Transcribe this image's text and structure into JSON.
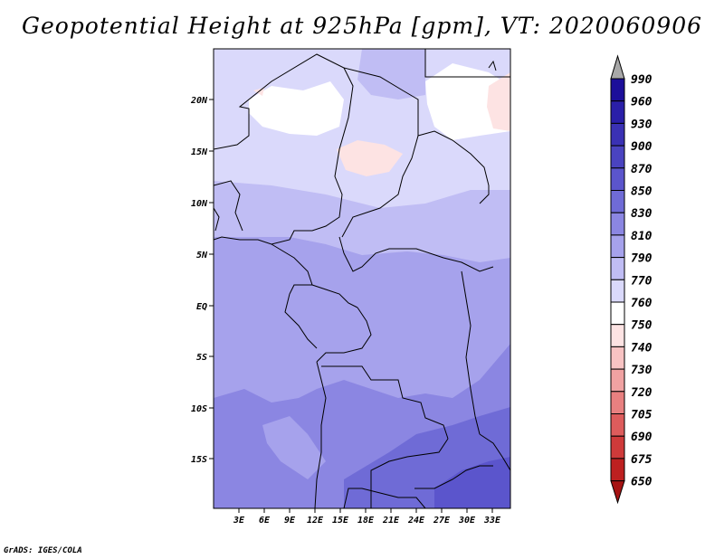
{
  "title": "Geopotential Height at 925hPa [gpm], VT: 2020060906",
  "credit": "GrADS: IGES/COLA",
  "lat_labels": [
    "20N",
    "15N",
    "10N",
    "5N",
    "EQ",
    "5S",
    "10S",
    "15S"
  ],
  "lon_labels": [
    "3E",
    "6E",
    "9E",
    "12E",
    "15E",
    "18E",
    "21E",
    "24E",
    "27E",
    "30E",
    "33E"
  ],
  "colorbar": {
    "levels": [
      "990",
      "960",
      "930",
      "900",
      "870",
      "850",
      "830",
      "810",
      "790",
      "770",
      "760",
      "750",
      "740",
      "730",
      "720",
      "705",
      "690",
      "675",
      "650"
    ],
    "colors": [
      "#1c0f9a",
      "#2a1fa8",
      "#3a31b4",
      "#4a43c0",
      "#5b55cc",
      "#6f6bd6",
      "#8b86e2",
      "#a6a2ec",
      "#c0bdf4",
      "#dad9fb",
      "#ffffff",
      "#fde3e3",
      "#f8c3c3",
      "#f0a2a2",
      "#e88080",
      "#dd5c5c",
      "#cf3a3a",
      "#bd2020",
      "#a61313"
    ],
    "cap_top_color": "#a8a8a8",
    "cap_bottom_color": "#a61313"
  }
}
